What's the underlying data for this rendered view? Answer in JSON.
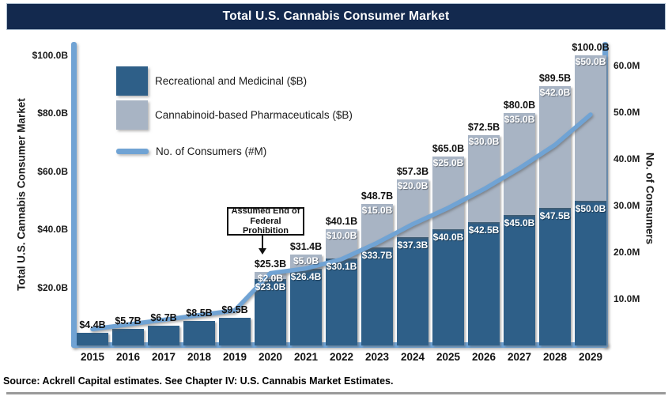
{
  "header": {
    "title": "Total U.S. Cannabis Consumer Market"
  },
  "colors": {
    "header_bg": "#13294E",
    "recreational_bar": "#2E5F88",
    "pharma_bar": "#A8B4C4",
    "consumer_line": "#70A3D4",
    "axis_line": "#70A3D4"
  },
  "legend": {
    "items": [
      {
        "icon": "dark-square-swatch",
        "label": "Recreational and Medicinal ($B)"
      },
      {
        "icon": "gray-square-swatch",
        "label": "Cannabinoid-based Pharmaceuticals ($B)"
      },
      {
        "icon": "blue-line-swatch",
        "label": "No. of Consumers (#M)"
      }
    ]
  },
  "annotation": {
    "line1": "Assumed End of",
    "line2": "Federal Prohibition",
    "target_year": "2020"
  },
  "chart_data": {
    "type": "bar",
    "categories": [
      "2015",
      "2016",
      "2017",
      "2018",
      "2019",
      "2020",
      "2021",
      "2022",
      "2023",
      "2024",
      "2025",
      "2026",
      "2027",
      "2028",
      "2029"
    ],
    "series": [
      {
        "name": "Recreational and Medicinal ($B)",
        "values": [
          4.4,
          5.7,
          6.7,
          8.5,
          9.5,
          23.0,
          26.4,
          30.1,
          33.7,
          37.3,
          40.0,
          42.5,
          45.0,
          47.5,
          50.0
        ],
        "labels": [
          "",
          "",
          "",
          "",
          "",
          "$23.0B",
          "$26.4B",
          "$30.1B",
          "$33.7B",
          "$37.3B",
          "$40.0B",
          "$42.5B",
          "$45.0B",
          "$47.5B",
          "$50.0B"
        ]
      },
      {
        "name": "Cannabinoid-based Pharmaceuticals ($B)",
        "values": [
          0,
          0,
          0,
          0,
          0,
          2.0,
          5.0,
          10.0,
          15.0,
          20.0,
          25.0,
          30.0,
          35.0,
          42.0,
          50.0
        ],
        "labels": [
          "",
          "",
          "",
          "",
          "",
          "$2.0B",
          "$5.0B",
          "$10.0B",
          "$15.0B",
          "$20.0B",
          "$25.0B",
          "$30.0B",
          "$35.0B",
          "$42.0B",
          "$50.0B"
        ]
      }
    ],
    "totals": [
      4.4,
      5.7,
      6.7,
      8.5,
      9.5,
      25.3,
      31.4,
      40.1,
      48.7,
      57.3,
      65.0,
      72.5,
      80.0,
      89.5,
      100.0
    ],
    "total_labels": [
      "$4.4B",
      "$5.7B",
      "$6.7B",
      "$8.5B",
      "$9.5B",
      "$25.3B",
      "$31.4B",
      "$40.1B",
      "$48.7B",
      "$57.3B",
      "$65.0B",
      "$72.5B",
      "$80.0B",
      "$89.5B",
      "$100.0B"
    ],
    "line_series": {
      "name": "No. of Consumers (#M)",
      "values": [
        3.5,
        4.5,
        5.5,
        6.5,
        7.5,
        15.5,
        16.5,
        18.5,
        22.0,
        26.0,
        29.5,
        33.5,
        38.0,
        43.0,
        49.5
      ]
    },
    "left_axis": {
      "title": "Total U.S. Cannabis Consumer Market",
      "tick_labels": [
        "$100.0B",
        "$80.0B",
        "$60.0B",
        "$40.0B",
        "$20.0B"
      ],
      "tick_values": [
        100,
        80,
        60,
        40,
        20
      ],
      "range": [
        0,
        100
      ]
    },
    "right_axis": {
      "title": "No. of Consumers",
      "tick_labels": [
        "60.0M",
        "50.0M",
        "40.0M",
        "30.0M",
        "20.0M",
        "10.0M"
      ],
      "tick_values": [
        60,
        50,
        40,
        30,
        20,
        10
      ],
      "range": [
        0,
        60
      ]
    },
    "grid": false,
    "legend_position": "top-left-inside"
  },
  "source": "Source: Ackrell Capital estimates. See Chapter IV: U.S. Cannabis Market Estimates."
}
